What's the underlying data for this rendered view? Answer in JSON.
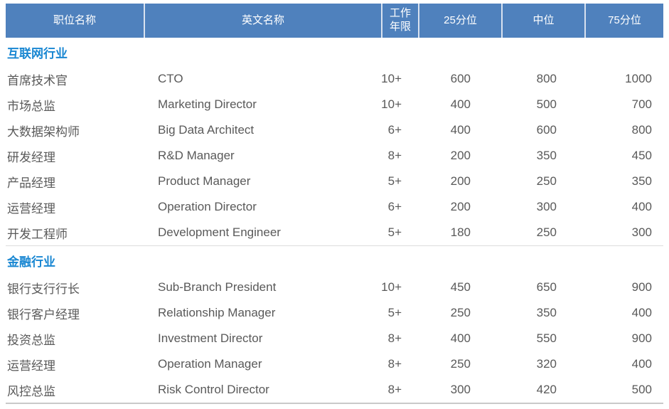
{
  "colors": {
    "header_bg": "#4F81BD",
    "header_text": "#FFFFFF",
    "header_separator": "#D9E2F0",
    "section_title": "#1987D2",
    "body_text": "#595959",
    "divider": "#DCDCDC",
    "bottom_border": "#C9C9C9"
  },
  "table": {
    "columns": [
      "职位名称",
      "英文名称",
      "工作\n年限",
      "25分位",
      "中位",
      "75分位"
    ],
    "sections": [
      {
        "title": "互联网行业",
        "rows": [
          [
            "首席技术官",
            "CTO",
            "10+",
            "600",
            "800",
            "1000"
          ],
          [
            "市场总监",
            "Marketing Director",
            "10+",
            "400",
            "500",
            "700"
          ],
          [
            "大数据架构师",
            "Big Data Architect",
            "6+",
            "400",
            "600",
            "800"
          ],
          [
            "研发经理",
            "R&D Manager",
            "8+",
            "200",
            "350",
            "450"
          ],
          [
            "产品经理",
            "Product Manager",
            "5+",
            "200",
            "250",
            "350"
          ],
          [
            "运营经理",
            "Operation Director",
            "6+",
            "200",
            "300",
            "400"
          ],
          [
            "开发工程师",
            "Development Engineer",
            "5+",
            "180",
            "250",
            "300"
          ]
        ]
      },
      {
        "title": "金融行业",
        "rows": [
          [
            "银行支行行长",
            "Sub-Branch President",
            "10+",
            "450",
            "650",
            "900"
          ],
          [
            "银行客户经理",
            "Relationship Manager",
            "5+",
            "250",
            "350",
            "400"
          ],
          [
            "投资总监",
            "Investment Director",
            "8+",
            "400",
            "550",
            "900"
          ],
          [
            "运营经理",
            "Operation Manager",
            "8+",
            "250",
            "320",
            "400"
          ],
          [
            "风控总监",
            "Risk Control Director",
            "8+",
            "300",
            "420",
            "500"
          ]
        ]
      }
    ]
  }
}
